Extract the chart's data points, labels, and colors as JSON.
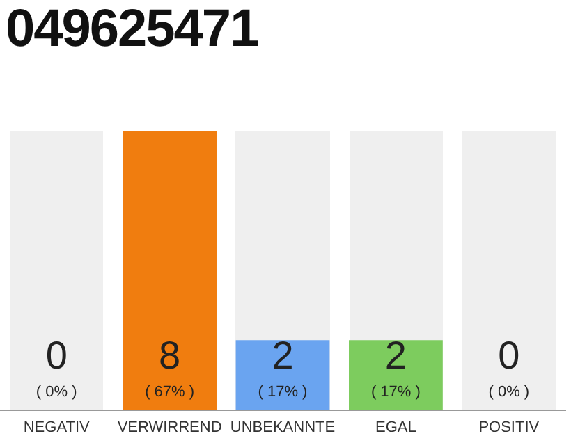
{
  "chart_data": {
    "type": "bar",
    "title": "049625471",
    "categories": [
      "NEGATIV",
      "VERWIRREND",
      "UNBEKANNTE",
      "EGAL",
      "POSITIV"
    ],
    "values": [
      0,
      8,
      2,
      2,
      0
    ],
    "colors": [
      "#cccccc",
      "#f07d0f",
      "#6aa4f0",
      "#7dcc5e",
      "#cccccc"
    ],
    "data_labels": true,
    "annotations": [
      "( 0% )",
      "( 67% )",
      "( 17% )",
      "( 17% )",
      "( 0% )"
    ],
    "grid": false,
    "legend": false
  }
}
